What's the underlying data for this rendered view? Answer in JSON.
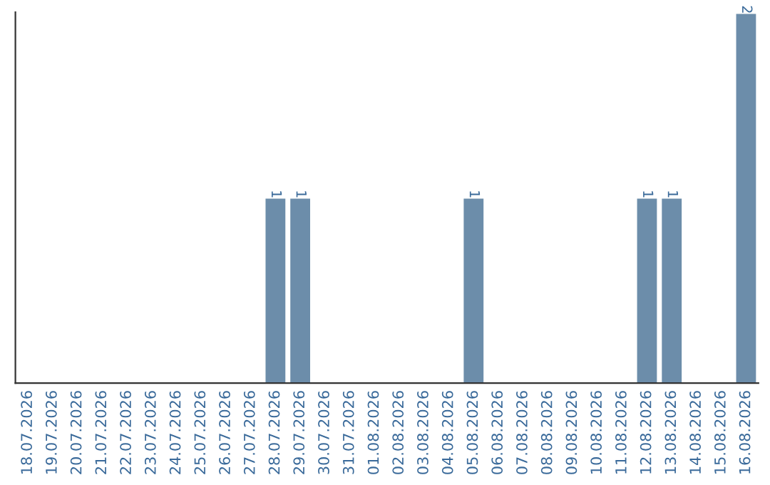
{
  "chart_data": {
    "type": "bar",
    "categories": [
      "18.07.2026",
      "19.07.2026",
      "20.07.2026",
      "21.07.2026",
      "22.07.2026",
      "23.07.2026",
      "24.07.2026",
      "25.07.2026",
      "26.07.2026",
      "27.07.2026",
      "28.07.2026",
      "29.07.2026",
      "30.07.2026",
      "31.07.2026",
      "01.08.2026",
      "02.08.2026",
      "03.08.2026",
      "04.08.2026",
      "05.08.2026",
      "06.08.2026",
      "07.08.2026",
      "08.08.2026",
      "09.08.2026",
      "10.08.2026",
      "11.08.2026",
      "12.08.2026",
      "13.08.2026",
      "14.08.2026",
      "15.08.2026",
      "16.08.2026"
    ],
    "values": [
      0,
      0,
      0,
      0,
      0,
      0,
      0,
      0,
      0,
      0,
      1,
      1,
      0,
      0,
      0,
      0,
      0,
      0,
      1,
      0,
      0,
      0,
      0,
      0,
      0,
      1,
      1,
      0,
      0,
      2
    ],
    "value_labels": [
      null,
      null,
      null,
      null,
      null,
      null,
      null,
      null,
      null,
      null,
      "1",
      "1",
      null,
      null,
      null,
      null,
      null,
      null,
      "1",
      null,
      null,
      null,
      null,
      null,
      null,
      "1",
      "1",
      null,
      null,
      "2"
    ],
    "color": "#6c8daa",
    "tick_labels": "x",
    "grid": false,
    "legend": false
  }
}
